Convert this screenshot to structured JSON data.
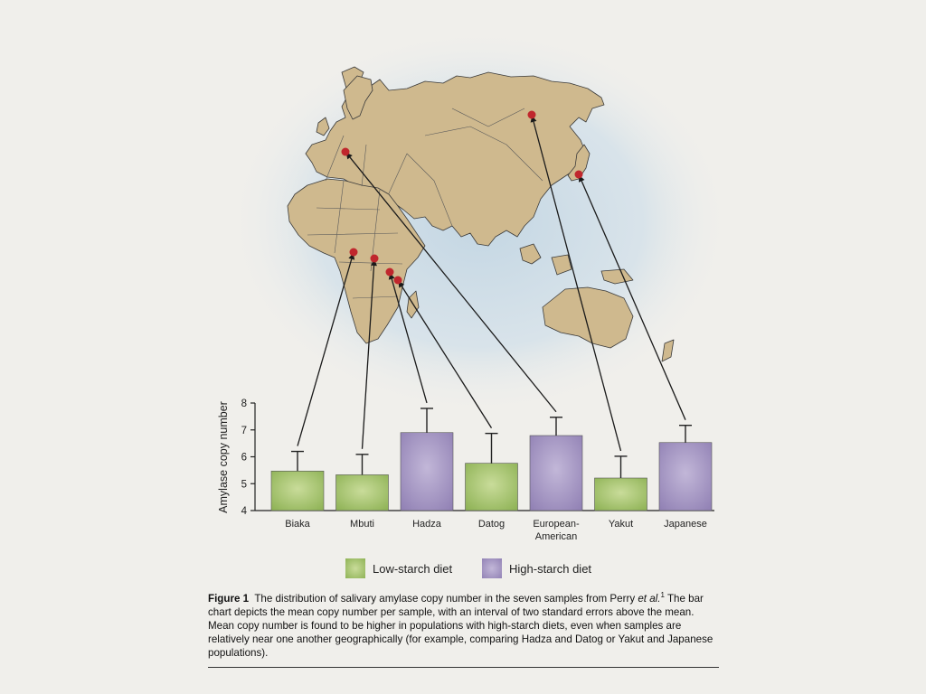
{
  "chart_data": {
    "type": "bar",
    "ylabel": "Amylase copy number",
    "ylim": [
      4,
      8
    ],
    "yticks": [
      4,
      5,
      6,
      7,
      8
    ],
    "categories": [
      "Biaka",
      "Mbuti",
      "Hadza",
      "Datog",
      "European-\nAmerican",
      "Yakut",
      "Japanese"
    ],
    "values": [
      5.47,
      5.33,
      6.9,
      5.76,
      6.79,
      5.21,
      6.53
    ],
    "error_upper": [
      6.2,
      6.09,
      7.8,
      6.87,
      7.47,
      6.02,
      7.17
    ],
    "diet": [
      "low",
      "low",
      "high",
      "low",
      "high",
      "low",
      "high"
    ],
    "legend": [
      {
        "key": "low",
        "label": "Low-starch diet",
        "color": "#a3c26a"
      },
      {
        "key": "high",
        "label": "High-starch diet",
        "color": "#a798c2"
      }
    ]
  },
  "colors": {
    "land": "#cfb98e",
    "ocean_glow": "#cfdde6",
    "marker": "#c0272d",
    "background": "#f0efeb"
  },
  "caption": {
    "label": "Figure 1",
    "text_a": "The distribution of salivary amylase copy number in the seven samples from Perry ",
    "text_em": "et al.",
    "sup": "1",
    "text_b": " The bar chart depicts the mean copy number per sample, with an interval of two standard errors above the mean. Mean copy number is found to be higher in populations with high-starch diets, even when samples are relatively near one another geographically (for example, comparing Hadza and Datog or Yakut and Japanese populations)."
  }
}
